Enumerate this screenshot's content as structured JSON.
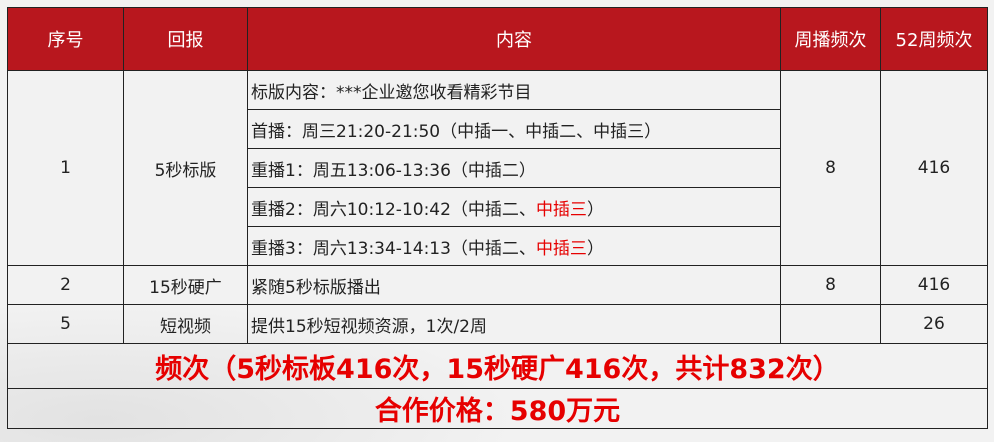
{
  "headers": [
    "序号",
    "回报",
    "内容",
    "周播频次",
    "52周频次"
  ],
  "row1": {
    "no": "1",
    "item": "5秒标版",
    "weekly": "8",
    "annual": "416",
    "lines": [
      {
        "text": "标版内容：***企业邀您收看精彩节目",
        "red": ""
      },
      {
        "text": "首播：周三21:20-21:50（中插一、中插二、中插三）",
        "red": ""
      },
      {
        "text": "重播1：周五13:06-13:36（中插二）",
        "red": ""
      },
      {
        "text": "重播2：周六10:12-10:42（中插二、",
        "red": "中插三",
        "end": "）"
      },
      {
        "text": "重播3：周六13:34-14:13（中插二、",
        "red": "中插三",
        "end": "）"
      }
    ]
  },
  "row2": {
    "no": "2",
    "item": "15秒硬广",
    "content": "紧随5秒标版播出",
    "weekly": "8",
    "annual": "416"
  },
  "row3": {
    "no": "5",
    "item": "短视频",
    "content": "提供15秒短视频资源，1次/2周",
    "weekly": "",
    "annual": "26"
  },
  "frequency": "频次（5秒标板416次，15秒硬广416次，共计832次）",
  "price": "合作价格：580万元",
  "colors": {
    "header": "#b8171e",
    "highlight": "#e60000"
  }
}
